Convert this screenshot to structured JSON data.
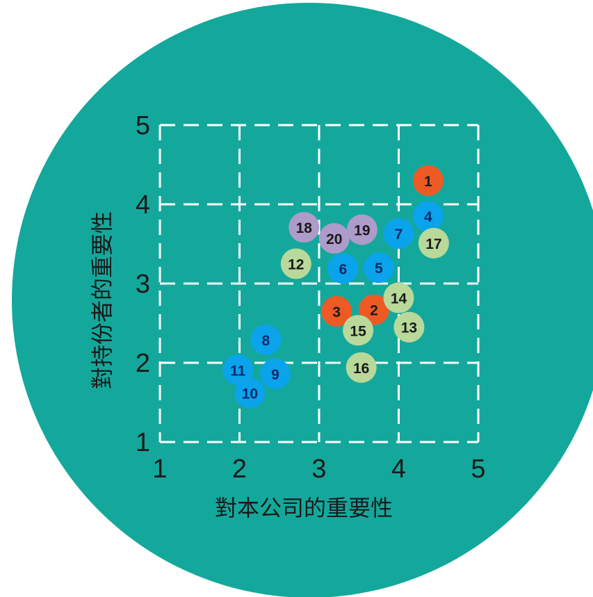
{
  "chart_data": {
    "type": "scatter",
    "xlabel": "對本公司的重要性",
    "ylabel": "對持份者的重要性",
    "xlim": [
      1,
      5
    ],
    "ylim": [
      1,
      5
    ],
    "x_ticks": [
      "1",
      "2",
      "3",
      "4",
      "5"
    ],
    "y_ticks": [
      "1",
      "2",
      "3",
      "4",
      "5"
    ],
    "grid": true,
    "legend": "none",
    "background_color": "#14a89c",
    "colors": {
      "orange": "#ee5a24",
      "blue": "#0aa3ec",
      "green": "#b8d99a",
      "purple": "#ad9bc9",
      "grid": "#ffffff",
      "label_dark": "#1a1a1a",
      "label_blue": "#0b2a6b"
    },
    "points": [
      {
        "label": "1",
        "x": 4.37,
        "y": 4.3,
        "color": "orange"
      },
      {
        "label": "2",
        "x": 3.69,
        "y": 2.67,
        "color": "orange"
      },
      {
        "label": "3",
        "x": 3.22,
        "y": 2.65,
        "color": "orange"
      },
      {
        "label": "4",
        "x": 4.37,
        "y": 3.85,
        "color": "blue"
      },
      {
        "label": "5",
        "x": 3.75,
        "y": 3.2,
        "color": "blue"
      },
      {
        "label": "6",
        "x": 3.3,
        "y": 3.19,
        "color": "blue"
      },
      {
        "label": "7",
        "x": 4.0,
        "y": 3.63,
        "color": "blue"
      },
      {
        "label": "8",
        "x": 2.33,
        "y": 2.29,
        "color": "blue"
      },
      {
        "label": "9",
        "x": 2.45,
        "y": 1.86,
        "color": "blue"
      },
      {
        "label": "10",
        "x": 2.13,
        "y": 1.62,
        "color": "blue"
      },
      {
        "label": "11",
        "x": 1.98,
        "y": 1.91,
        "color": "blue"
      },
      {
        "label": "12",
        "x": 2.71,
        "y": 3.25,
        "color": "green"
      },
      {
        "label": "13",
        "x": 4.13,
        "y": 2.45,
        "color": "green"
      },
      {
        "label": "14",
        "x": 4.0,
        "y": 2.82,
        "color": "green"
      },
      {
        "label": "15",
        "x": 3.49,
        "y": 2.41,
        "color": "green"
      },
      {
        "label": "16",
        "x": 3.53,
        "y": 1.94,
        "color": "green"
      },
      {
        "label": "17",
        "x": 4.44,
        "y": 3.51,
        "color": "green"
      },
      {
        "label": "18",
        "x": 2.81,
        "y": 3.71,
        "color": "purple"
      },
      {
        "label": "19",
        "x": 3.54,
        "y": 3.68,
        "color": "purple"
      },
      {
        "label": "20",
        "x": 3.19,
        "y": 3.57,
        "color": "purple"
      }
    ]
  }
}
